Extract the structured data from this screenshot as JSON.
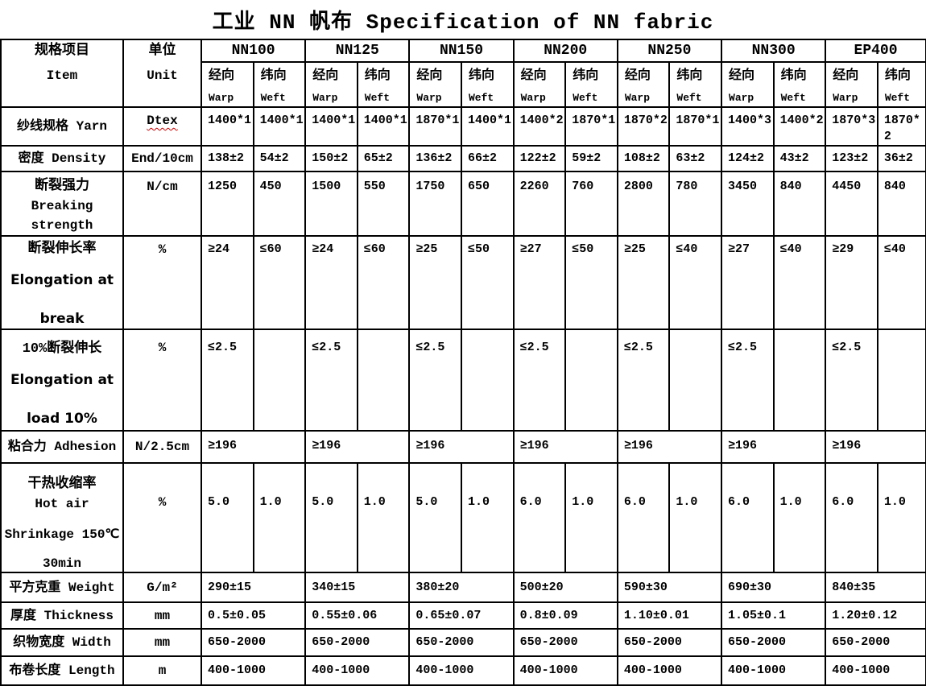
{
  "title": "工业 NN 帆布 Specification of NN fabric",
  "colors": {
    "spellcheck_underline": "#cc0000",
    "text": "#000000",
    "background": "#ffffff"
  },
  "header": {
    "item_zh": "规格项目",
    "item_en": "Item",
    "unit_zh": "单位",
    "unit_en": "Unit",
    "products": [
      "NN100",
      "NN125",
      "NN150",
      "NN200",
      "NN250",
      "NN300",
      "EP400"
    ],
    "warp_zh": "经向",
    "warp_en": "Warp",
    "weft_zh": "纬向",
    "weft_en": "Weft"
  },
  "rows": {
    "yarn": {
      "label": "纱线规格 Yarn",
      "unit": "Dtex",
      "values": [
        "1400*1",
        "1400*1",
        "1400*1",
        "1400*1",
        "1870*1",
        "1400*1",
        "1400*2",
        "1870*1",
        "1870*2",
        "1870*1",
        "1400*3",
        "1400*2",
        "1870*3",
        "1870*2"
      ]
    },
    "density": {
      "label": "密度 Density",
      "unit": "End/10cm",
      "values": [
        "138±2",
        "54±2",
        "150±2",
        "65±2",
        "136±2",
        "66±2",
        "122±2",
        "59±2",
        "108±2",
        "63±2",
        "124±2",
        "43±2",
        "123±2",
        "36±2"
      ]
    },
    "breaking": {
      "label_zh": "断裂强力",
      "label_en1": "Breaking",
      "label_en2": "strength",
      "unit": "N/cm",
      "values": [
        "1250",
        "450",
        "1500",
        "550",
        "1750",
        "650",
        "2260",
        "760",
        "2800",
        "780",
        "3450",
        "840",
        "4450",
        "840"
      ]
    },
    "elong_break": {
      "label_zh": "断裂伸长率",
      "label_en1": "Elongation at",
      "label_en2": "break",
      "unit": "%",
      "values": [
        "≥24",
        "≤60",
        "≥24",
        "≤60",
        "≥25",
        "≤50",
        "≥27",
        "≤50",
        "≥25",
        "≤40",
        "≥27",
        "≤40",
        "≥29",
        "≤40"
      ]
    },
    "elong_10": {
      "label_zh": "10%断裂伸长",
      "label_en1": "Elongation at",
      "label_en2": "load 10%",
      "unit": "%",
      "values": [
        "≤2.5",
        "",
        "≤2.5",
        "",
        "≤2.5",
        "",
        "≤2.5",
        "",
        "≤2.5",
        "",
        "≤2.5",
        "",
        "≤2.5",
        ""
      ]
    },
    "adhesion": {
      "label": "粘合力 Adhesion",
      "unit": "N/2.5cm",
      "values": [
        "≥196",
        "≥196",
        "≥196",
        "≥196",
        "≥196",
        "≥196",
        "≥196"
      ]
    },
    "shrinkage": {
      "label_zh": "干热收缩率",
      "label_en1": "Hot air",
      "label_en2": "Shrinkage 150℃",
      "label_en3": "30min",
      "unit": "%",
      "values": [
        "5.0",
        "1.0",
        "5.0",
        "1.0",
        "5.0",
        "1.0",
        "6.0",
        "1.0",
        "6.0",
        "1.0",
        "6.0",
        "1.0",
        "6.0",
        "1.0"
      ]
    },
    "weight": {
      "label": "平方克重 Weight",
      "unit": "G/m²",
      "values": [
        "290±15",
        "340±15",
        "380±20",
        "500±20",
        "590±30",
        "690±30",
        "840±35"
      ]
    },
    "thickness": {
      "label": "厚度 Thickness",
      "unit": "mm",
      "values": [
        "0.5±0.05",
        "0.55±0.06",
        "0.65±0.07",
        "0.8±0.09",
        "1.10±0.01",
        "1.05±0.1",
        "1.20±0.12"
      ]
    },
    "width": {
      "label": "织物宽度 Width",
      "unit": "mm",
      "values": [
        "650-2000",
        "650-2000",
        "650-2000",
        "650-2000",
        "650-2000",
        "650-2000",
        "650-2000"
      ]
    },
    "length": {
      "label": "布卷长度 Length",
      "unit": "m",
      "values": [
        "400-1000",
        "400-1000",
        "400-1000",
        "400-1000",
        "400-1000",
        "400-1000",
        "400-1000"
      ]
    }
  }
}
